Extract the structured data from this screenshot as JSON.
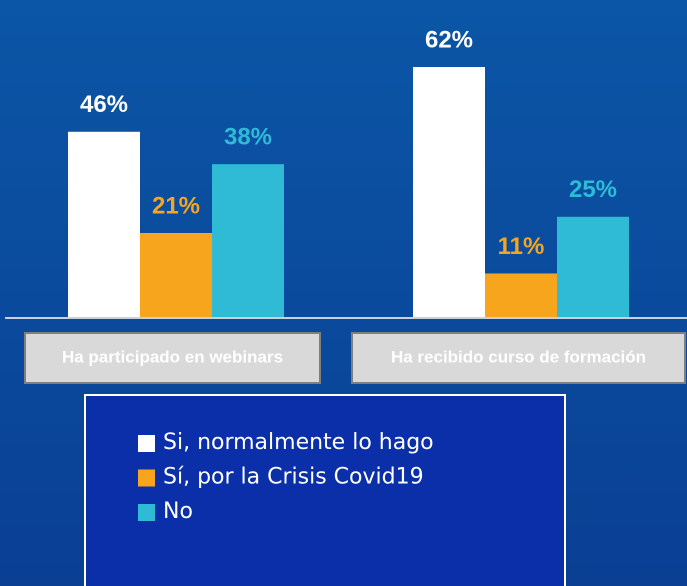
{
  "chart_data": {
    "type": "bar",
    "categories": [
      "Ha participado en webinars",
      "Ha recibido curso de formación"
    ],
    "series": [
      {
        "name": "Si, normalmente lo hago",
        "color": "#ffffff",
        "values": [
          46,
          62
        ],
        "value_labels": [
          "46%",
          "62%"
        ]
      },
      {
        "name": "Sí, por la Crisis Covid19",
        "color": "#f7a51c",
        "values": [
          21,
          11
        ],
        "value_labels": [
          "21%",
          "11%"
        ]
      },
      {
        "name": "No",
        "color": "#2fbad6",
        "values": [
          38,
          25
        ],
        "value_labels": [
          "38%",
          "25%"
        ]
      }
    ]
  }
}
